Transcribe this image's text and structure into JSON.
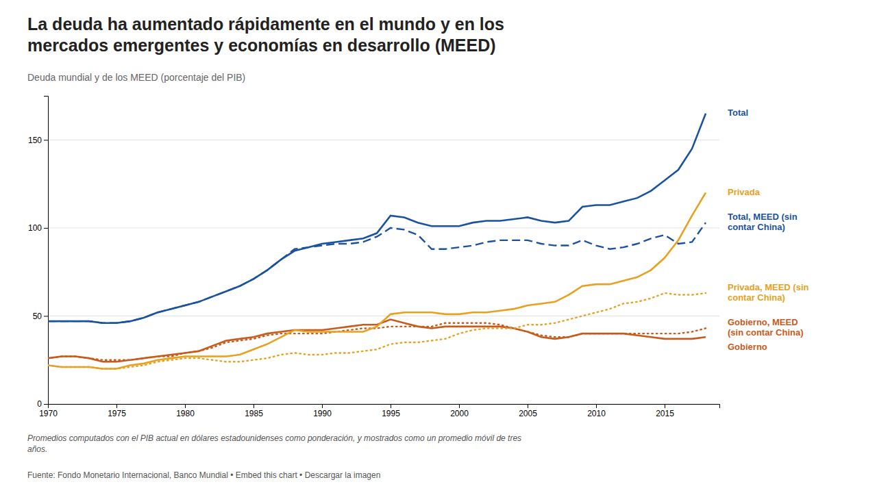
{
  "chart_data": {
    "type": "line",
    "title": "La deuda ha aumentado rápidamente en el mundo y en los\nmercados emergentes y economías en desarrollo (MEED)",
    "subtitle": "Deuda mundial y de los MEED (porcentaje del PIB)",
    "footnote": "Promedios computados con el PIB actual en dólares estadounidenses como ponderación, y mostrados como un promedio móvil de tres\naños.",
    "source": "Fuente: Fondo Monetario Internacional, Banco Mundial • Embed this chart • Descargar la imagen",
    "x": [
      1970,
      1971,
      1972,
      1973,
      1974,
      1975,
      1976,
      1977,
      1978,
      1979,
      1980,
      1981,
      1982,
      1983,
      1984,
      1985,
      1986,
      1987,
      1988,
      1989,
      1990,
      1991,
      1992,
      1993,
      1994,
      1995,
      1996,
      1997,
      1998,
      1999,
      2000,
      2001,
      2002,
      2003,
      2004,
      2005,
      2006,
      2007,
      2008,
      2009,
      2010,
      2011,
      2012,
      2013,
      2014,
      2015,
      2016,
      2017,
      2018
    ],
    "series": [
      {
        "name": "Gobierno",
        "color": "#c85a1a",
        "line_style": "solid",
        "values": [
          26,
          27,
          27,
          26,
          24,
          24,
          25,
          26,
          27,
          28,
          29,
          30,
          33,
          36,
          37,
          38,
          40,
          41,
          42,
          42,
          42,
          43,
          44,
          45,
          45,
          48,
          46,
          44,
          43,
          44,
          44,
          44,
          44,
          44,
          43,
          41,
          38,
          37,
          38,
          40,
          40,
          40,
          40,
          39,
          38,
          37,
          37,
          37,
          38
        ]
      },
      {
        "name": "Gobierno, MEED\n(sin contar China)",
        "color": "#c85a1a",
        "line_style": "dotted",
        "values": [
          26,
          27,
          27,
          26,
          25,
          25,
          25,
          26,
          27,
          27,
          29,
          30,
          32,
          35,
          36,
          37,
          39,
          40,
          40,
          40,
          40,
          41,
          42,
          43,
          43,
          44,
          44,
          44,
          44,
          46,
          46,
          46,
          46,
          45,
          43,
          41,
          39,
          38,
          38,
          40,
          40,
          40,
          40,
          40,
          40,
          40,
          40,
          41,
          43
        ]
      },
      {
        "name": "Privada, MEED (sin\ncontar China)",
        "color": "#e8a020",
        "line_style": "dotted",
        "values": [
          22,
          21,
          21,
          21,
          20,
          20,
          21,
          22,
          24,
          25,
          26,
          26,
          25,
          24,
          24,
          25,
          26,
          28,
          29,
          28,
          28,
          29,
          29,
          30,
          31,
          34,
          35,
          35,
          36,
          37,
          40,
          42,
          43,
          43,
          43,
          45,
          45,
          46,
          48,
          50,
          52,
          54,
          57,
          58,
          60,
          63,
          62,
          62,
          63
        ]
      },
      {
        "name": "Privada",
        "color": "#e8a020",
        "line_style": "solid",
        "values": [
          22,
          21,
          21,
          21,
          20,
          20,
          22,
          23,
          25,
          26,
          27,
          27,
          27,
          27,
          28,
          31,
          34,
          38,
          42,
          41,
          41,
          41,
          41,
          41,
          44,
          51,
          52,
          52,
          52,
          51,
          51,
          52,
          52,
          53,
          54,
          56,
          57,
          58,
          62,
          67,
          68,
          68,
          70,
          72,
          76,
          83,
          93,
          107,
          120
        ]
      },
      {
        "name": "Total, MEED (sin\ncontar China)",
        "color": "#1a52a0",
        "line_style": "dashed",
        "values": [
          47,
          47,
          47,
          47,
          46,
          46,
          47,
          49,
          52,
          54,
          56,
          58,
          61,
          64,
          67,
          71,
          76,
          82,
          88,
          89,
          90,
          91,
          91,
          92,
          95,
          100,
          99,
          96,
          88,
          88,
          89,
          90,
          92,
          93,
          93,
          93,
          91,
          90,
          90,
          93,
          90,
          88,
          89,
          91,
          94,
          96,
          91,
          92,
          103
        ]
      },
      {
        "name": "Total",
        "color": "#1a52a0",
        "line_style": "solid",
        "values": [
          47,
          47,
          47,
          47,
          46,
          46,
          47,
          49,
          52,
          54,
          56,
          58,
          61,
          64,
          67,
          71,
          76,
          82,
          87,
          89,
          91,
          92,
          93,
          94,
          97,
          107,
          106,
          103,
          101,
          101,
          101,
          103,
          104,
          104,
          105,
          106,
          104,
          103,
          104,
          112,
          113,
          113,
          115,
          117,
          121,
          127,
          133,
          145,
          165
        ]
      }
    ],
    "xlim": [
      1970,
      2019
    ],
    "xticks": [
      1970,
      1975,
      1980,
      1985,
      1990,
      1995,
      2000,
      2005,
      2010,
      2015
    ],
    "ylim": [
      0,
      175
    ],
    "yticks": [
      0,
      50,
      100,
      150
    ],
    "grid": true
  }
}
